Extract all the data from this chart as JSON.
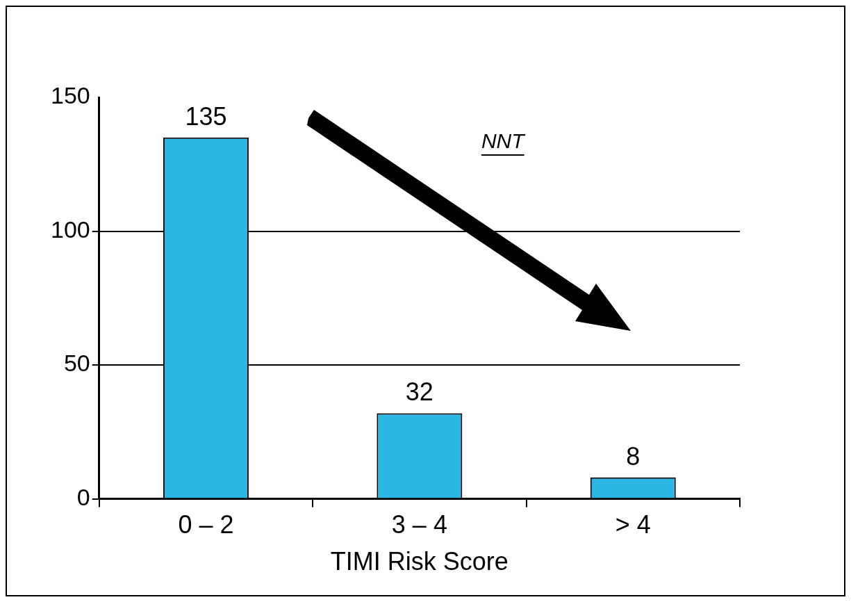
{
  "chart_data": {
    "type": "bar",
    "xlabel": "TIMI Risk Score",
    "categories": [
      "0 – 2",
      "3 – 4",
      "> 4"
    ],
    "values": [
      135,
      32,
      8
    ],
    "color": "#2bb6e3",
    "ylim": [
      0,
      150
    ],
    "yticks": [
      0,
      50,
      100,
      150
    ],
    "grid": "y",
    "data_labels": true,
    "annotations": [
      "NNT"
    ]
  }
}
